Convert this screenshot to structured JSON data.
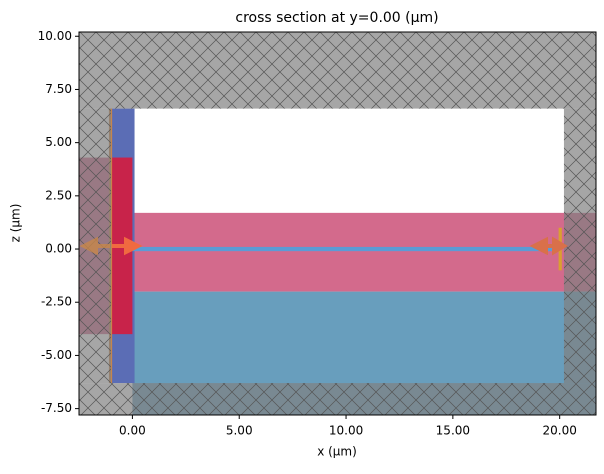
{
  "chart_data": {
    "type": "structure",
    "title": "cross section at y=0.00 (μm)",
    "x_label": "x (μm)",
    "y_label": "z (μm)",
    "xlim": [
      -2.5,
      21.7
    ],
    "ylim": [
      -7.8,
      10.2
    ],
    "xticks": [
      {
        "value": 0,
        "label": "0.00"
      },
      {
        "value": 5,
        "label": "5.00"
      },
      {
        "value": 10,
        "label": "10.00"
      },
      {
        "value": 15,
        "label": "15.00"
      },
      {
        "value": 20,
        "label": "20.00"
      }
    ],
    "yticks": [
      {
        "value": -7.5,
        "label": "-7.50"
      },
      {
        "value": -5,
        "label": "-5.00"
      },
      {
        "value": -2.5,
        "label": "-2.50"
      },
      {
        "value": 0,
        "label": "0.00"
      },
      {
        "value": 2.5,
        "label": "2.50"
      },
      {
        "value": 5,
        "label": "5.00"
      },
      {
        "value": 7.5,
        "label": "7.50"
      },
      {
        "value": 10,
        "label": "10.00"
      }
    ],
    "regions": [
      {
        "x": [
          -2.5,
          21.7
        ],
        "z": [
          -2.0,
          1.7
        ],
        "color": "#d36a8c"
      },
      {
        "x": [
          0.0,
          21.7
        ],
        "z": [
          -7.8,
          -2.0
        ],
        "color": "#689ebd"
      },
      {
        "x": [
          -1.0,
          0.1
        ],
        "z": [
          -6.3,
          6.6
        ],
        "color": "#5b6db5"
      },
      {
        "x": [
          -2.5,
          -1.0
        ],
        "z": [
          -4.0,
          4.3
        ],
        "color": "#d36a8c"
      },
      {
        "x": [
          -1.0,
          0.0
        ],
        "z": [
          -4.0,
          4.3
        ],
        "color": "#c8234a"
      },
      {
        "x": [
          0.0,
          20.0
        ],
        "z": [
          -0.1,
          0.1
        ],
        "color": "#5b9bd5"
      },
      {
        "x": [
          -1.1,
          -0.95
        ],
        "z": [
          -6.3,
          6.6
        ],
        "color": "#c8874a"
      },
      {
        "x": [
          19.95,
          20.1
        ],
        "z": [
          -1.0,
          1.0
        ],
        "color": "#d9a030"
      },
      {
        "x": [
          -2.5,
          21.7
        ],
        "z": [
          6.6,
          10.2
        ],
        "color": "#808080",
        "hatch": true
      },
      {
        "x": [
          -2.5,
          21.7
        ],
        "z": [
          -7.8,
          -6.3
        ],
        "color": "#808080",
        "hatch": true
      },
      {
        "x": [
          -2.5,
          -1.0
        ],
        "z": [
          -6.3,
          6.6
        ],
        "color": "#808080",
        "hatch": true
      },
      {
        "x": [
          20.2,
          21.7
        ],
        "z": [
          -6.3,
          6.6
        ],
        "color": "#808080",
        "hatch": true
      }
    ]
  }
}
